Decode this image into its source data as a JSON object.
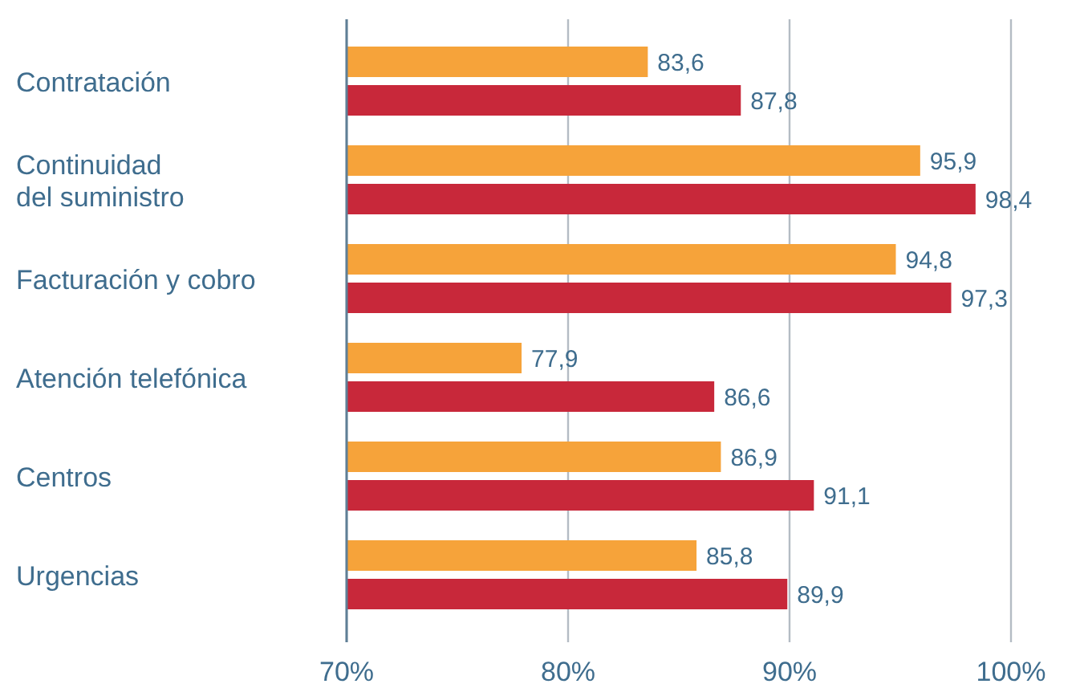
{
  "chart_data": {
    "type": "bar",
    "orientation": "horizontal",
    "categories": [
      "Contratación",
      "Continuidad del suministro",
      "Facturación y cobro",
      "Atención telefónica",
      "Centros",
      "Urgencias"
    ],
    "series": [
      {
        "color": "#f6a33a",
        "values": [
          83.6,
          95.9,
          94.8,
          77.9,
          86.9,
          85.8
        ],
        "value_labels": [
          "83,6",
          "95,9",
          "94,8",
          "77,9",
          "86,9",
          "85,8"
        ]
      },
      {
        "color": "#c8283a",
        "values": [
          87.8,
          98.4,
          97.3,
          86.6,
          91.1,
          89.9
        ],
        "value_labels": [
          "87,8",
          "98,4",
          "97,3",
          "86,6",
          "91,1",
          "89,9"
        ]
      }
    ],
    "xlim": [
      70,
      100
    ],
    "xticks": [
      {
        "value": 70,
        "label": "70%"
      },
      {
        "value": 80,
        "label": "80%"
      },
      {
        "value": 90,
        "label": "90%"
      },
      {
        "value": 100,
        "label": "100%"
      }
    ],
    "grid": "x"
  }
}
